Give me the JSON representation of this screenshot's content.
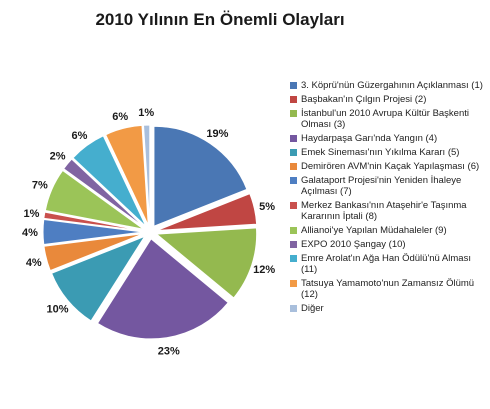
{
  "chart_data": {
    "type": "pie",
    "title": "2010 Yılının En Önemli Olayları",
    "legend_position": "right",
    "slices": [
      {
        "label": "3. Köprü'nün Güzergahının Açıklanması (1)",
        "value": 19,
        "pct_label": "19%",
        "color": "#4a77b4"
      },
      {
        "label": "Başbakan'ın Çılgın Projesi (2)",
        "value": 5,
        "pct_label": "5%",
        "color": "#c04643"
      },
      {
        "label": "İstanbul'un 2010 Avrupa Kültür Başkenti Olması (3)",
        "value": 12,
        "pct_label": "12%",
        "color": "#94b94f"
      },
      {
        "label": "Haydarpaşa Garı'nda Yangın (4)",
        "value": 23,
        "pct_label": "23%",
        "color": "#7457a0"
      },
      {
        "label": "Emek Sineması'nın Yıkılma Kararı (5)",
        "value": 10,
        "pct_label": "10%",
        "color": "#3b9bb3"
      },
      {
        "label": "Demirören AVM'nin Kaçak Yapılaşması (6)",
        "value": 4,
        "pct_label": "4%",
        "color": "#e9893b"
      },
      {
        "label": "Galataport Projesi'nin Yeniden İhaleye Açılması (7)",
        "value": 4,
        "pct_label": "4%",
        "color": "#4e7ec2"
      },
      {
        "label": "Merkez Bankası'nın Ataşehir'e Taşınma Kararının İptali (8)",
        "value": 1,
        "pct_label": "1%",
        "color": "#c9504d"
      },
      {
        "label": "Allianoi'ye Yapılan Müdahaleler (9)",
        "value": 7,
        "pct_label": "7%",
        "color": "#9bc458"
      },
      {
        "label": "EXPO 2010 Şangay (10)",
        "value": 2,
        "pct_label": "2%",
        "color": "#8064a2"
      },
      {
        "label": "Emre Arolat'ın Ağa Han Ödülü'nü Alması (11)",
        "value": 6,
        "pct_label": "6%",
        "color": "#45aece"
      },
      {
        "label": "Tatsuya Yamamoto'nun Zamansız Ölümü (12)",
        "value": 6,
        "pct_label": "6%",
        "color": "#f29a45"
      },
      {
        "label": "Diğer",
        "value": 1,
        "pct_label": "1%",
        "color": "#a9bfdc"
      }
    ]
  }
}
